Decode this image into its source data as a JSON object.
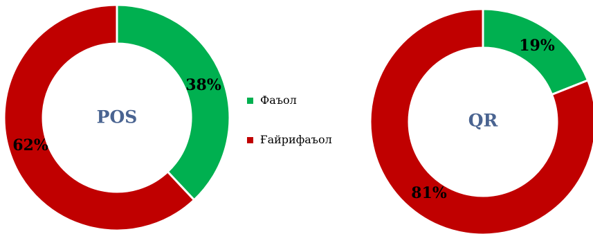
{
  "colors": {
    "active": "#00b050",
    "inactive": "#c00000",
    "center_text": "#4a6491",
    "separator": "#ffffff"
  },
  "legend": {
    "items": [
      {
        "label": "Фаъол",
        "color": "#00b050"
      },
      {
        "label": "Ғайрифаъол",
        "color": "#c00000"
      }
    ]
  },
  "chart_data": [
    {
      "type": "pie",
      "variant": "donut",
      "center_label": "POS",
      "categories": [
        "Фаъол",
        "Ғайрифаъол"
      ],
      "values": [
        38,
        62
      ],
      "data_labels": [
        "38%",
        "62%"
      ],
      "colors": [
        "#00b050",
        "#c00000"
      ],
      "legend": "right"
    },
    {
      "type": "pie",
      "variant": "donut",
      "center_label": "QR",
      "categories": [
        "Фаъол",
        "Ғайрифаъол"
      ],
      "values": [
        19,
        81
      ],
      "data_labels": [
        "19%",
        "81%"
      ],
      "colors": [
        "#00b050",
        "#c00000"
      ],
      "legend": "none"
    }
  ]
}
